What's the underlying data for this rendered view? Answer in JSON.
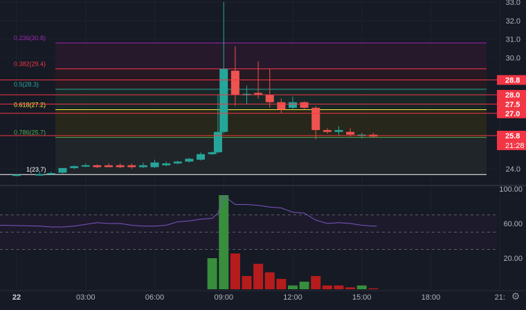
{
  "colors": {
    "background": "#161a25",
    "grid": "#1e222d",
    "up": "#26a69a",
    "down": "#ef5350",
    "axis_text": "#b2b5be",
    "rsi_line": "#7e57c2",
    "vol_up": "#388e3c",
    "vol_down": "#b71c1c"
  },
  "price_axis": {
    "ticks": [
      "33.0",
      "32.0",
      "31.0",
      "30.0",
      "28.8",
      "24.0"
    ],
    "ylim": [
      23.6,
      33.0
    ]
  },
  "fib_levels": [
    {
      "label": "0.236(30.8)",
      "value": 30.8,
      "color": "#9c27b0"
    },
    {
      "label": "0.382(29.4)",
      "value": 29.4,
      "color": "#f23645"
    },
    {
      "label": "0.5(28.3)",
      "value": 28.3,
      "color": "#26a69a"
    },
    {
      "label": "0.618(27.2)",
      "value": 27.2,
      "color": "#ffeb3b"
    },
    {
      "label": "0.786(25.7)",
      "value": 25.7,
      "color": "#4caf50"
    },
    {
      "label": "1(23.7)",
      "value": 23.7,
      "color": "#ffffff"
    }
  ],
  "price_badges": [
    {
      "text": "28.8",
      "value": 28.8,
      "bg": "#f23645"
    },
    {
      "text": "28.0",
      "value": 28.0,
      "bg": "#f23645"
    },
    {
      "text": "27.5",
      "value": 27.5,
      "bg": "#f23645"
    },
    {
      "text": "27.0",
      "value": 27.0,
      "bg": "#f23645"
    },
    {
      "text": "25.8",
      "value": 25.8,
      "bg": "#f23645"
    }
  ],
  "countdown": "21:28",
  "oscillator_axis": {
    "ticks": [
      "100.00",
      "60.00",
      "20.00"
    ],
    "ylim": [
      0,
      100
    ],
    "bands": [
      70,
      50,
      30
    ]
  },
  "time_axis": {
    "labels": [
      "22",
      "03:00",
      "06:00",
      "09:00",
      "12:00",
      "15:00",
      "18:00",
      "21:"
    ]
  },
  "chart_data": {
    "type": "candlestick",
    "candles": [
      {
        "t": "00:00",
        "o": 23.66,
        "h": 23.72,
        "l": 23.6,
        "c": 23.7
      },
      {
        "t": "01:00",
        "o": 23.7,
        "h": 23.9,
        "l": 23.65,
        "c": 23.72
      },
      {
        "t": "01:30",
        "o": 23.72,
        "h": 23.85,
        "l": 23.7,
        "c": 23.78
      },
      {
        "t": "02:00",
        "o": 23.8,
        "h": 24.0,
        "l": 23.75,
        "c": 24.05
      },
      {
        "t": "02:30",
        "o": 24.05,
        "h": 24.2,
        "l": 24.0,
        "c": 24.15
      },
      {
        "t": "03:00",
        "o": 24.15,
        "h": 24.3,
        "l": 24.1,
        "c": 24.2
      },
      {
        "t": "03:30",
        "o": 24.2,
        "h": 24.25,
        "l": 24.05,
        "c": 24.1
      },
      {
        "t": "04:00",
        "o": 24.2,
        "h": 24.3,
        "l": 24.1,
        "c": 24.1
      },
      {
        "t": "04:30",
        "o": 24.2,
        "h": 24.3,
        "l": 24.05,
        "c": 24.1
      },
      {
        "t": "05:00",
        "o": 24.2,
        "h": 24.3,
        "l": 24.0,
        "c": 24.1
      },
      {
        "t": "05:30",
        "o": 24.1,
        "h": 24.35,
        "l": 24.05,
        "c": 24.2
      },
      {
        "t": "06:00",
        "o": 24.1,
        "h": 24.5,
        "l": 24.05,
        "c": 24.35
      },
      {
        "t": "06:30",
        "o": 24.2,
        "h": 24.4,
        "l": 24.15,
        "c": 24.3
      },
      {
        "t": "07:00",
        "o": 24.3,
        "h": 24.45,
        "l": 24.25,
        "c": 24.4
      },
      {
        "t": "07:30",
        "o": 24.4,
        "h": 24.6,
        "l": 24.35,
        "c": 24.55
      },
      {
        "t": "08:00",
        "o": 24.5,
        "h": 24.9,
        "l": 24.45,
        "c": 24.8
      },
      {
        "t": "08:30",
        "o": 24.8,
        "h": 24.95,
        "l": 24.75,
        "c": 24.9
      },
      {
        "t": "08:45",
        "o": 24.9,
        "h": 28.0,
        "l": 24.85,
        "c": 26.0
      },
      {
        "t": "09:00",
        "o": 26.0,
        "h": 33.0,
        "l": 25.9,
        "c": 29.4
      },
      {
        "t": "09:30",
        "o": 29.3,
        "h": 30.6,
        "l": 27.4,
        "c": 28.0
      },
      {
        "t": "10:00",
        "o": 28.0,
        "h": 28.5,
        "l": 27.5,
        "c": 28.05
      },
      {
        "t": "10:30",
        "o": 28.1,
        "h": 29.8,
        "l": 27.8,
        "c": 28.0
      },
      {
        "t": "11:00",
        "o": 28.0,
        "h": 29.4,
        "l": 27.3,
        "c": 27.6
      },
      {
        "t": "11:30",
        "o": 27.6,
        "h": 27.8,
        "l": 27.0,
        "c": 27.2
      },
      {
        "t": "12:00",
        "o": 27.3,
        "h": 27.9,
        "l": 27.2,
        "c": 27.6
      },
      {
        "t": "12:30",
        "o": 27.6,
        "h": 27.65,
        "l": 27.2,
        "c": 27.3
      },
      {
        "t": "13:00",
        "o": 27.3,
        "h": 27.4,
        "l": 25.6,
        "c": 26.1
      },
      {
        "t": "13:30",
        "o": 26.1,
        "h": 26.2,
        "l": 25.9,
        "c": 26.0
      },
      {
        "t": "14:00",
        "o": 26.0,
        "h": 26.3,
        "l": 25.8,
        "c": 26.1
      },
      {
        "t": "14:30",
        "o": 26.0,
        "h": 26.2,
        "l": 25.75,
        "c": 25.85
      },
      {
        "t": "15:00",
        "o": 25.85,
        "h": 25.95,
        "l": 25.65,
        "c": 25.85
      },
      {
        "t": "15:30",
        "o": 25.85,
        "h": 25.95,
        "l": 25.7,
        "c": 25.75
      }
    ],
    "rsi": [
      58,
      57,
      56,
      56,
      57,
      59,
      61,
      60,
      60,
      58,
      57,
      57,
      58,
      62,
      63,
      65,
      66,
      72,
      92,
      82,
      82,
      81,
      79,
      78,
      73,
      72,
      64,
      60,
      61,
      60,
      58,
      57
    ],
    "volume": [
      {
        "t": "08:30",
        "v": 33,
        "dir": "up"
      },
      {
        "t": "09:00",
        "v": 100,
        "dir": "up"
      },
      {
        "t": "09:30",
        "v": 38,
        "dir": "down"
      },
      {
        "t": "10:00",
        "v": 14,
        "dir": "down"
      },
      {
        "t": "10:30",
        "v": 27,
        "dir": "down"
      },
      {
        "t": "11:00",
        "v": 18,
        "dir": "down"
      },
      {
        "t": "11:30",
        "v": 11,
        "dir": "down"
      },
      {
        "t": "12:00",
        "v": 4,
        "dir": "up"
      },
      {
        "t": "12:30",
        "v": 8,
        "dir": "up"
      },
      {
        "t": "13:00",
        "v": 14,
        "dir": "down"
      },
      {
        "t": "13:30",
        "v": 4,
        "dir": "down"
      },
      {
        "t": "14:00",
        "v": 4,
        "dir": "down"
      },
      {
        "t": "14:30",
        "v": 2,
        "dir": "down"
      },
      {
        "t": "15:00",
        "v": 4,
        "dir": "up"
      },
      {
        "t": "15:30",
        "v": 1,
        "dir": "down"
      }
    ]
  }
}
